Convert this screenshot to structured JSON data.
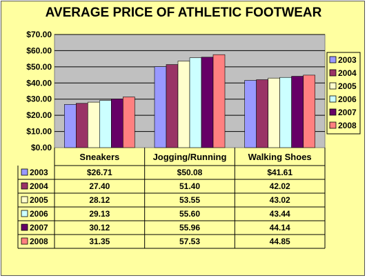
{
  "chart_data": {
    "type": "bar",
    "title": "AVERAGE PRICE OF ATHLETIC FOOTWEAR",
    "categories": [
      "Sneakers",
      "Jogging/Running",
      "Walking Shoes"
    ],
    "ylim": [
      0,
      70
    ],
    "ytick_labels": [
      "$0.00",
      "$10.00",
      "$20.00",
      "$30.00",
      "$40.00",
      "$50.00",
      "$60.00",
      "$70.00"
    ],
    "grid": true,
    "legend": "right",
    "series": [
      {
        "name": "2003",
        "color": "#9999ff",
        "values": [
          26.71,
          50.08,
          41.61
        ],
        "labels": [
          "$26.71",
          "$50.08",
          "$41.61"
        ]
      },
      {
        "name": "2004",
        "color": "#993366",
        "values": [
          27.4,
          51.4,
          42.02
        ],
        "labels": [
          "27.40",
          "51.40",
          "42.02"
        ]
      },
      {
        "name": "2005",
        "color": "#ffffcc",
        "values": [
          28.12,
          53.55,
          43.02
        ],
        "labels": [
          "28.12",
          "53.55",
          "43.02"
        ]
      },
      {
        "name": "2006",
        "color": "#ccffff",
        "values": [
          29.13,
          55.6,
          43.44
        ],
        "labels": [
          "29.13",
          "55.60",
          "43.44"
        ]
      },
      {
        "name": "2007",
        "color": "#660066",
        "values": [
          30.12,
          55.96,
          44.14
        ],
        "labels": [
          "30.12",
          "55.96",
          "44.14"
        ]
      },
      {
        "name": "2008",
        "color": "#ff8080",
        "values": [
          31.35,
          57.53,
          44.85
        ],
        "labels": [
          "31.35",
          "57.53",
          "44.85"
        ]
      }
    ]
  }
}
